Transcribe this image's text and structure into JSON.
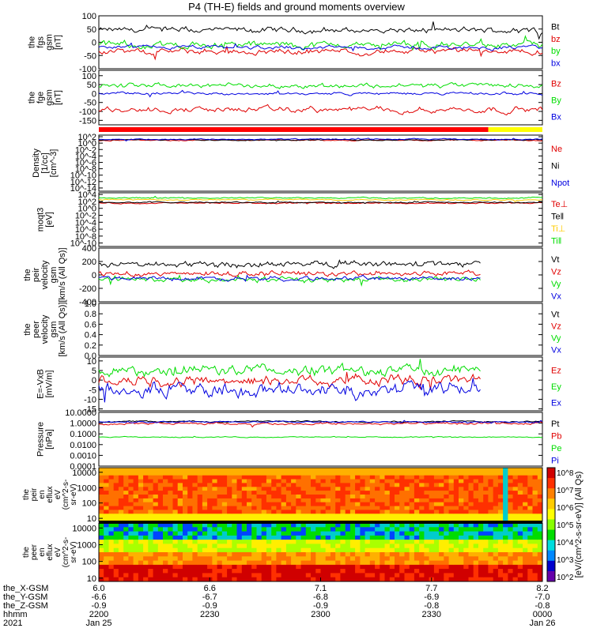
{
  "title": "P4 (TH-E) fields and ground moments overview",
  "chart_data": {
    "type": "line",
    "panels": [
      {
        "id": "fgs",
        "ylabel": [
          "the",
          "fgs",
          "gsm",
          "[nT]"
        ],
        "yticks": [
          "100",
          "50",
          "0",
          "-50",
          "-100"
        ],
        "ytick_vals": [
          100,
          50,
          0,
          -50,
          -100
        ],
        "ylim": [
          -100,
          100
        ],
        "log": false,
        "series": [
          {
            "name": "Bt",
            "color": "#000000",
            "base": 45,
            "amp": 12
          },
          {
            "name": "bz",
            "color": "#e00000",
            "base": -35,
            "amp": 12
          },
          {
            "name": "by",
            "color": "#00dd00",
            "base": -10,
            "amp": 14
          },
          {
            "name": "bx",
            "color": "#0000e0",
            "base": -20,
            "amp": 8
          }
        ]
      },
      {
        "id": "fge",
        "ylabel": [
          "the",
          "fge",
          "gsm",
          "[nT]"
        ],
        "yticks": [
          "100",
          "50",
          "0",
          "-50",
          "-100",
          "-150"
        ],
        "ytick_vals": [
          100,
          50,
          0,
          -50,
          -100,
          -150
        ],
        "ylim": [
          -175,
          130
        ],
        "log": false,
        "series": [
          {
            "name": "Bz",
            "color": "#e00000",
            "base": -90,
            "amp": 18
          },
          {
            "name": "By",
            "color": "#00dd00",
            "base": 45,
            "amp": 15
          },
          {
            "name": "Bx",
            "color": "#0000e0",
            "base": 0,
            "amp": 8
          }
        ]
      },
      {
        "id": "density",
        "ylabel": [
          "Density",
          "[1/cc]",
          "[cm^-3]"
        ],
        "yticks": [
          "10^2",
          "10^0",
          "10^-2",
          "10^-4",
          "10^-6",
          "10^-8",
          "10^-10",
          "10^-12",
          "10^-14"
        ],
        "ytick_vals": [
          2,
          0,
          -2,
          -4,
          -6,
          -8,
          -10,
          -12,
          -14
        ],
        "ylim": [
          -15,
          2.5
        ],
        "log": true,
        "series": [
          {
            "name": "Ne",
            "color": "#e00000",
            "base": 0.9,
            "amp": 0.2
          },
          {
            "name": "Ni",
            "color": "#000000",
            "base": 1.0,
            "amp": 0.2
          },
          {
            "name": "Npot",
            "color": "#0000e0",
            "base": 1.2,
            "amp": 0.2
          }
        ]
      },
      {
        "id": "temp",
        "ylabel": [
          "moqt3",
          "[eV]"
        ],
        "yticks": [
          "10^4",
          "10^2",
          "10^0",
          "10^-2",
          "10^-4",
          "10^-6",
          "10^-8",
          "10^-10"
        ],
        "ytick_vals": [
          4,
          2,
          0,
          -2,
          -4,
          -6,
          -8,
          -10
        ],
        "ylim": [
          -11,
          4.5
        ],
        "log": true,
        "series": [
          {
            "name": "Te⊥",
            "color": "#e00000",
            "base": 1.5,
            "amp": 0.2
          },
          {
            "name": "Te‖",
            "color": "#000000",
            "base": 1.7,
            "amp": 0.2
          },
          {
            "name": "Ti⊥",
            "color": "#ffcc00",
            "base": 2.5,
            "amp": 0.2
          },
          {
            "name": "Ti‖",
            "color": "#00dd00",
            "base": 3.0,
            "amp": 0.2
          }
        ]
      },
      {
        "id": "peir_vel",
        "ylabel": [
          "the",
          "peir",
          "velocity",
          "gsm",
          "[km/s (All Qs)]"
        ],
        "yticks": [
          "400",
          "200",
          "0",
          "-200",
          "-400"
        ],
        "ytick_vals": [
          400,
          200,
          0,
          -200,
          -400
        ],
        "ylim": [
          -400,
          400
        ],
        "log": false,
        "series": [
          {
            "name": "Vt",
            "color": "#000000",
            "base": 160,
            "amp": 50
          },
          {
            "name": "Vz",
            "color": "#e00000",
            "base": 20,
            "amp": 40
          },
          {
            "name": "Vy",
            "color": "#00dd00",
            "base": -70,
            "amp": 40
          },
          {
            "name": "Vx",
            "color": "#0000e0",
            "base": -50,
            "amp": 35
          }
        ]
      },
      {
        "id": "peer_vel",
        "ylabel": [
          "the",
          "peer",
          "velocity",
          "gsm",
          "[km/s (All Qs)]"
        ],
        "yticks": [
          "1.0",
          "0.8",
          "0.6",
          "0.4",
          "0.2",
          "0.0"
        ],
        "ytick_vals": [
          1,
          0.8,
          0.6,
          0.4,
          0.2,
          0
        ],
        "ylim": [
          0,
          1
        ],
        "log": false,
        "series": [
          {
            "name": "Vt",
            "color": "#000000"
          },
          {
            "name": "Vz",
            "color": "#e00000"
          },
          {
            "name": "Vy",
            "color": "#00dd00"
          },
          {
            "name": "Vx",
            "color": "#0000e0"
          }
        ]
      },
      {
        "id": "efield",
        "ylabel": [
          "E=-VxB",
          "[mV/m]"
        ],
        "yticks": [
          "10",
          "5",
          "0",
          "-5",
          "-10",
          "-15"
        ],
        "ytick_vals": [
          10,
          5,
          0,
          -5,
          -10,
          -15
        ],
        "ylim": [
          -16,
          12
        ],
        "log": false,
        "series": [
          {
            "name": "Ez",
            "color": "#e00000",
            "base": 0,
            "amp": 3
          },
          {
            "name": "Ey",
            "color": "#00dd00",
            "base": 5,
            "amp": 3
          },
          {
            "name": "Ex",
            "color": "#0000e0",
            "base": -5,
            "amp": 4
          }
        ]
      },
      {
        "id": "pressure",
        "ylabel": [
          "Pressure",
          "[nPa]"
        ],
        "yticks": [
          "10.0000",
          "1.0000",
          "0.1000",
          "0.0100",
          "0.0010",
          "0.0001"
        ],
        "ytick_vals": [
          1,
          0,
          -1,
          -2,
          -3,
          -4
        ],
        "ylim": [
          -4,
          1
        ],
        "log": true,
        "series": [
          {
            "name": "Pt",
            "color": "#000000",
            "base": 0.15,
            "amp": 0.08
          },
          {
            "name": "Pb",
            "color": "#e00000",
            "base": -0.05,
            "amp": 0.12
          },
          {
            "name": "Pe",
            "color": "#00dd00",
            "base": -1.3,
            "amp": 0.05
          },
          {
            "name": "Pi",
            "color": "#0000e0",
            "base": 0.1,
            "amp": 0.08
          }
        ]
      }
    ],
    "spectrograms": [
      {
        "id": "peir_eflux",
        "ylabel": [
          "the",
          "peir",
          "en",
          "eflux",
          "eV",
          "(cm^2-s-",
          "sr-eV)"
        ],
        "yticks": [
          "10000",
          "1000",
          "100",
          "10"
        ],
        "ytick_vals": [
          4,
          3,
          2,
          1
        ]
      },
      {
        "id": "peer_eflux",
        "ylabel": [
          "the",
          "peer",
          "en",
          "eflux",
          "eV",
          "(cm^2-s-",
          "sr-eV)"
        ],
        "yticks": [
          "10000",
          "1000",
          "100",
          "10"
        ],
        "ytick_vals": [
          4,
          3,
          2,
          1
        ]
      }
    ],
    "colorbar": {
      "label": "[eV/(cm^2-s-sr-eV)] (All Qs)",
      "ticks": [
        "10^8",
        "10^7",
        "10^6",
        "10^5",
        "10^4",
        "10^3",
        "10^2"
      ]
    },
    "x_axis": {
      "rows": [
        "the_X-GSM",
        "the_Y-GSM",
        "the_Z-GSM",
        "hhmm",
        "2021"
      ],
      "ticks": [
        {
          "x": "6.0",
          "y": "-6.6",
          "z": "-0.9",
          "t": "2200",
          "d": "Jan 25"
        },
        {
          "x": "6.6",
          "y": "-6.7",
          "z": "-0.9",
          "t": "2230",
          "d": ""
        },
        {
          "x": "7.1",
          "y": "-6.8",
          "z": "-0.9",
          "t": "2300",
          "d": ""
        },
        {
          "x": "7.7",
          "y": "-6.9",
          "z": "-0.8",
          "t": "2330",
          "d": ""
        },
        {
          "x": "8.2",
          "y": "-7.0",
          "z": "-0.8",
          "t": "0000",
          "d": "Jan 26"
        }
      ]
    },
    "flag_bar": {
      "colors": [
        "#ff0000",
        "#ffff00"
      ]
    }
  }
}
